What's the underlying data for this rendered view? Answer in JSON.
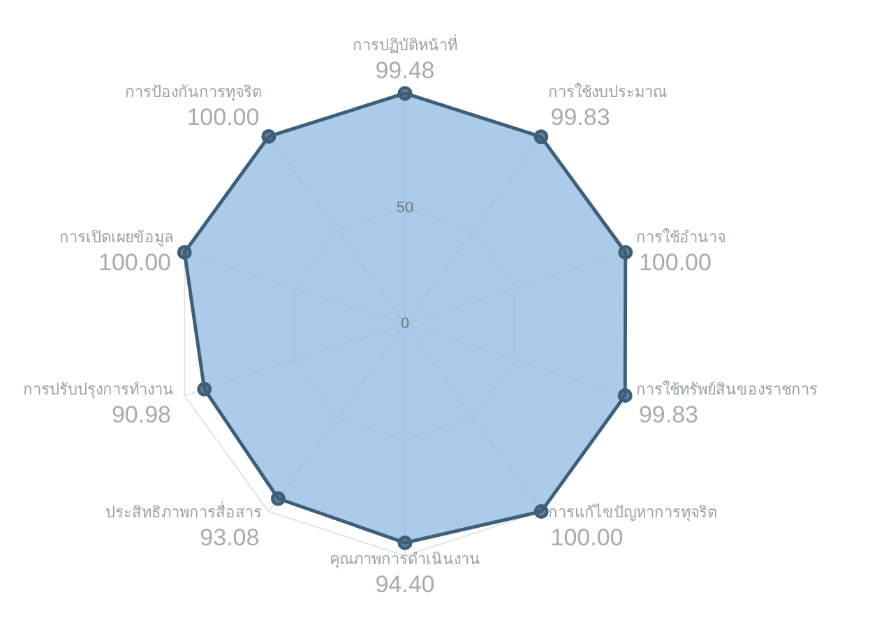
{
  "chart_data": {
    "type": "radar",
    "categories": [
      "การปฏิบัติหน้าที่",
      "การใช้งบประมาณ",
      "การใช้อำนาจ",
      "การใช้ทรัพย์สินของราชการ",
      "การแก้ไขปัญหาการทุจริต",
      "คุณภาพการดำเนินงาน",
      "ประสิทธิภาพการสื่อสาร",
      "การปรับปรุงการทำงาน",
      "การเปิดเผยข้อมูล",
      "การป้องกันการทุจริต"
    ],
    "series": [
      {
        "color": "#3e5f7a",
        "values": [
          99.48,
          99.83,
          100,
          99.83,
          100,
          94.4,
          93.08,
          90.98,
          100,
          100
        ],
        "value_labels": [
          "99.48",
          "99.83",
          "100.00",
          "99.83",
          "100.00",
          "94.40",
          "93.08",
          "90.98",
          "100.00",
          "100.00"
        ]
      }
    ],
    "ylim": [
      0,
      100
    ],
    "yticks": [
      0,
      50
    ],
    "marker": "circle",
    "grid": true,
    "legend": false
  }
}
